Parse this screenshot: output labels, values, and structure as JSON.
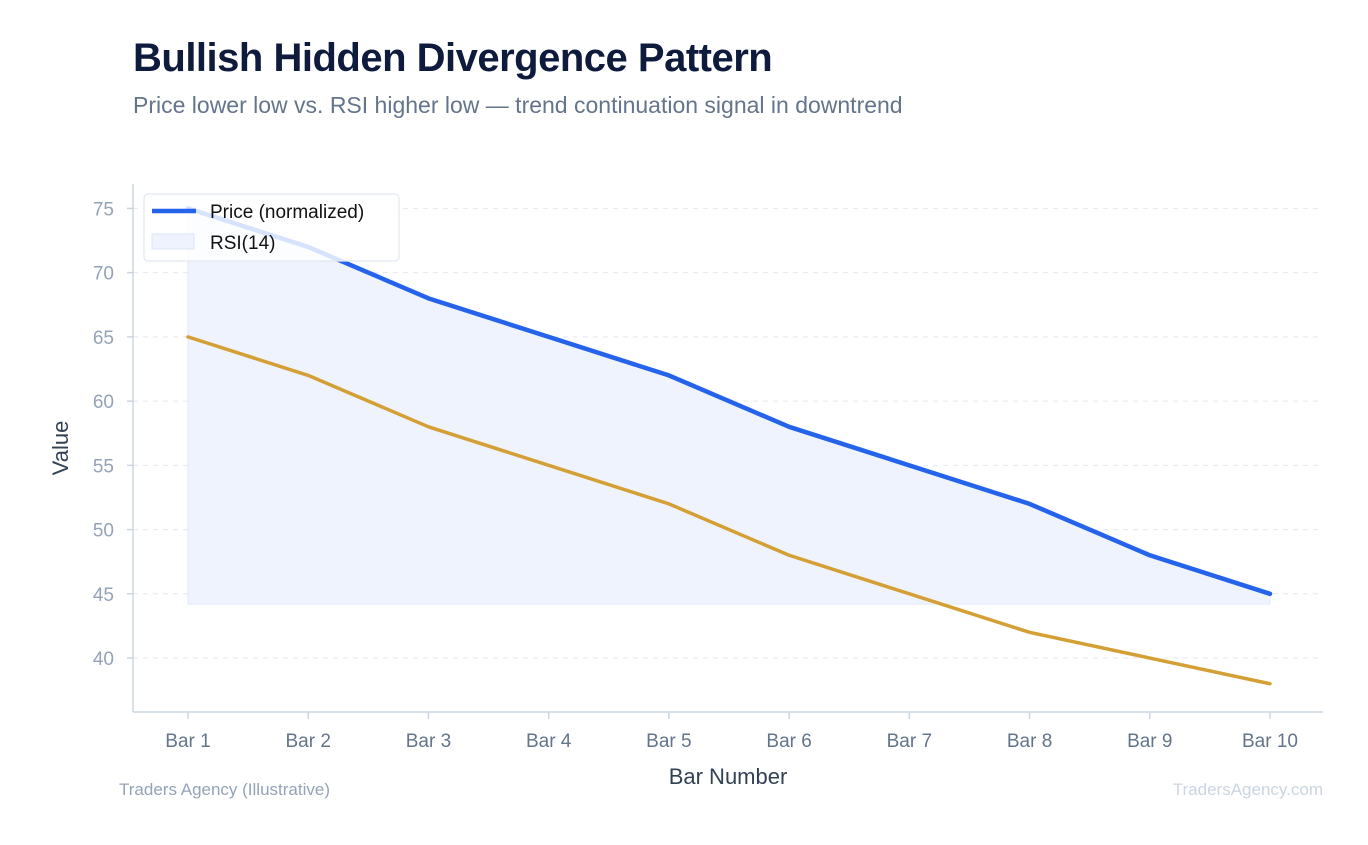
{
  "header": {
    "title": "Bullish Hidden Divergence Pattern",
    "subtitle": "Price lower low vs. RSI higher low — trend continuation signal in downtrend"
  },
  "footer": {
    "source": "Traders Agency (Illustrative)",
    "watermark": "TradersAgency.com"
  },
  "colors": {
    "price": "#2563eb",
    "rsi": "#d4a035",
    "fill": "#eef3fd",
    "grid": "#e5e7eb",
    "axis": "#cbd5e1"
  },
  "chart_data": {
    "type": "line",
    "categories": [
      "Bar 1",
      "Bar 2",
      "Bar 3",
      "Bar 4",
      "Bar 5",
      "Bar 6",
      "Bar 7",
      "Bar 8",
      "Bar 9",
      "Bar 10"
    ],
    "series": [
      {
        "name": "Price (normalized)",
        "values": [
          75,
          72,
          68,
          65,
          62,
          58,
          55,
          52,
          48,
          45
        ],
        "style": "line"
      },
      {
        "name": "RSI(14)",
        "values": [
          65,
          62,
          58,
          55,
          52,
          48,
          45,
          42,
          40,
          38
        ],
        "style": "line"
      }
    ],
    "fill_baseline": 44.2,
    "xlabel": "Bar Number",
    "ylabel": "Value",
    "ylim": [
      35.8,
      76.9
    ],
    "yticks": [
      40,
      45,
      50,
      55,
      60,
      65,
      70,
      75
    ],
    "grid": "horizontal dashed",
    "legend_position": "top-left"
  }
}
